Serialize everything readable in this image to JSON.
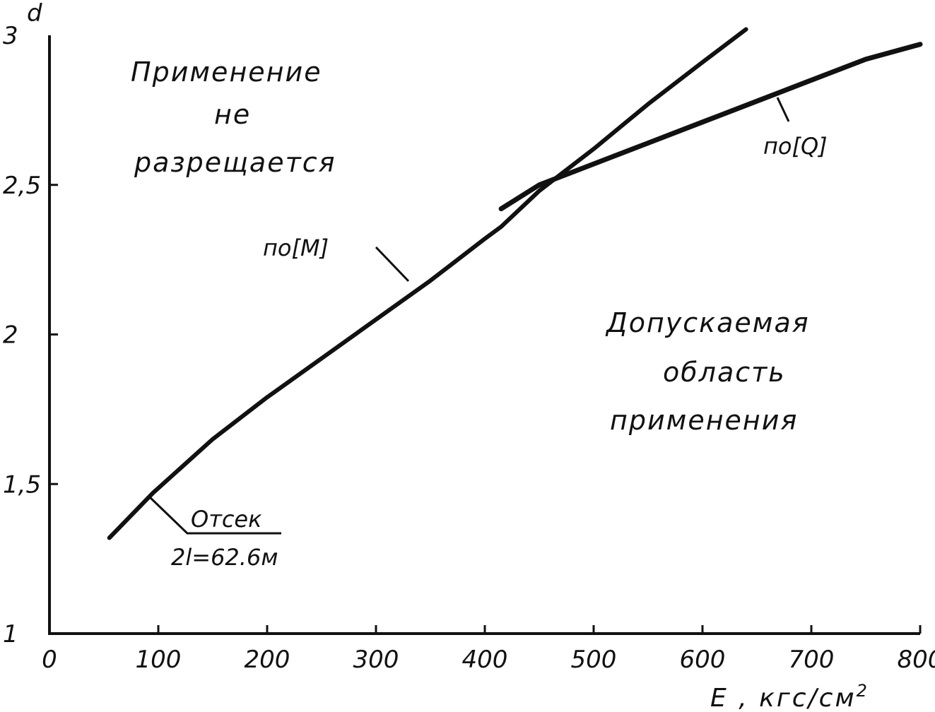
{
  "chart_data": {
    "type": "line",
    "title": "",
    "xlabel": "E , кгс/см",
    "xlabel_sup": "2",
    "ylabel": "d",
    "xlim": [
      0,
      800
    ],
    "ylim": [
      1,
      3
    ],
    "x_ticks": [
      0,
      100,
      200,
      300,
      400,
      500,
      600,
      700,
      800
    ],
    "x_tick_labels": [
      "0",
      "100",
      "200",
      "300",
      "400",
      "500",
      "600",
      "700",
      "800"
    ],
    "y_ticks": [
      1,
      1.5,
      2,
      2.5,
      3
    ],
    "y_tick_labels": [
      "1",
      "1,5",
      "2",
      "2,5",
      "3"
    ],
    "grid": false,
    "series": [
      {
        "name": "по[M]",
        "x": [
          55,
          95,
          150,
          200,
          250,
          300,
          350,
          400,
          415,
          450,
          500,
          550,
          600,
          640
        ],
        "y": [
          1.32,
          1.47,
          1.65,
          1.79,
          1.92,
          2.05,
          2.18,
          2.32,
          2.36,
          2.48,
          2.62,
          2.77,
          2.91,
          3.02
        ]
      },
      {
        "name": "по[Q]",
        "x": [
          415,
          450,
          500,
          550,
          600,
          650,
          700,
          750,
          800
        ],
        "y": [
          2.42,
          2.5,
          2.57,
          2.64,
          2.71,
          2.78,
          2.85,
          2.92,
          2.97
        ]
      }
    ],
    "annotations": {
      "not_allowed": [
        "Применение",
        "не",
        "разрещается"
      ],
      "allowed": [
        "Допускаемая",
        "область",
        "применения"
      ],
      "compartment_title": "Отсек",
      "compartment_value": "2l=62.6м"
    }
  }
}
